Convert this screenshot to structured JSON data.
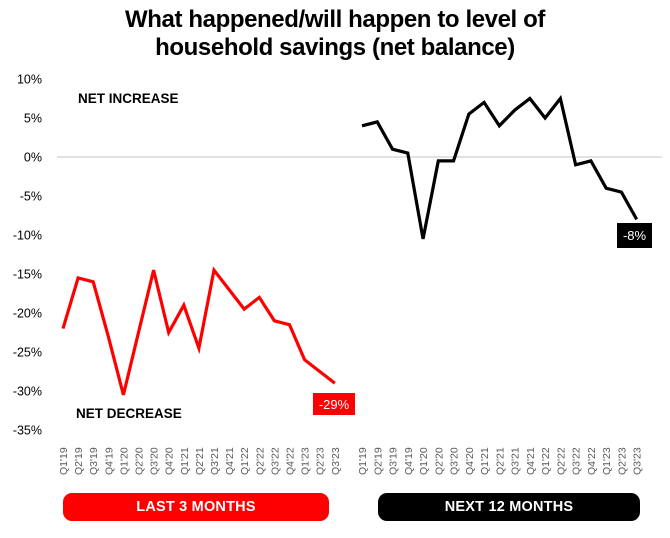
{
  "header": {
    "title_line1": "What happened/will happen to level of",
    "title_line2": "household savings (net balance)"
  },
  "chart_data": {
    "type": "line",
    "title": "What happened/will happen to level of household savings (net balance)",
    "layout": "two side-by-side panels sharing one y-axis; only gridline is the 0% line",
    "ylim": [
      -35,
      10
    ],
    "ytick_step": 5,
    "ytick_suffix": "%",
    "categories": [
      "Q1'19",
      "Q2'19",
      "Q3'19",
      "Q4'19",
      "Q1'20",
      "Q2'20",
      "Q3'20",
      "Q4'20",
      "Q1'21",
      "Q2'21",
      "Q3'21",
      "Q4'21",
      "Q1'22",
      "Q2'22",
      "Q3'22",
      "Q4'22",
      "Q1'23",
      "Q2'23",
      "Q3'23"
    ],
    "series": [
      {
        "name": "LAST 3 MONTHS",
        "panel": "left",
        "color": "#fe0000",
        "values": [
          -22,
          -15.5,
          -16,
          -23,
          -30.5,
          -22.5,
          -14.5,
          -22.5,
          -19,
          -24.5,
          -14.5,
          -17,
          -19.5,
          -18,
          -21,
          -21.5,
          -26,
          -27.5,
          -29
        ],
        "end_label": "-29%"
      },
      {
        "name": "NEXT 12 MONTHS",
        "panel": "right",
        "color": "#000000",
        "values": [
          4,
          4.5,
          1,
          0.5,
          -10.5,
          -0.5,
          -0.5,
          5.5,
          7,
          4,
          6,
          7.5,
          5,
          7.5,
          -1,
          -0.5,
          -4,
          -4.5,
          -8
        ],
        "end_label": "-8%"
      }
    ],
    "annotations": {
      "net_increase": "NET INCREASE",
      "net_decrease": "NET DECREASE"
    },
    "axis_colors": {
      "x_labels": "#595959",
      "y_labels": "#000000",
      "zero_gridline": "#d9d9d9"
    },
    "legend_position": "bottom"
  },
  "legend": {
    "last3": {
      "label": "LAST 3 MONTHS",
      "bg": "#fe0000",
      "text_color": "#ffffff"
    },
    "next12": {
      "label": "NEXT 12 MONTHS",
      "bg": "#000000",
      "text_color": "#ffffff"
    }
  }
}
